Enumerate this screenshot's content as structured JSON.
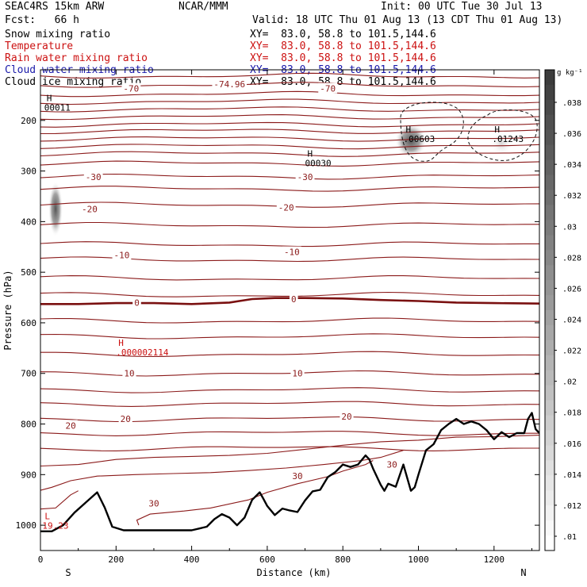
{
  "header": {
    "model": "SEAC4RS 15km ARW",
    "org": "NCAR/MMM",
    "init": "Init: 00 UTC Tue 30 Jul 13",
    "fcst": "Fcst:   66 h",
    "valid": "Valid: 18 UTC Thu 01 Aug 13 (13 CDT Thu 01 Aug 13)"
  },
  "fields": [
    {
      "name": "Snow mixing ratio",
      "xy": "XY=  83.0, 58.8 to 101.5,144.6",
      "color": "#000000"
    },
    {
      "name": "Temperature",
      "xy": "XY=  83.0, 58.8 to 101.5,144.6",
      "color": "#cc1111"
    },
    {
      "name": "Rain water mixing ratio",
      "xy": "XY=  83.0, 58.8 to 101.5,144.6",
      "color": "#cc1111"
    },
    {
      "name": "Cloud water mixing ratio",
      "xy": "XY=  83.0, 58.8 to 101.5,144.6",
      "color": "#1a1aaa"
    },
    {
      "name": "Cloud ice mixing ratio",
      "xy": "XY=  83.0, 58.8 to 101.5,144.6",
      "color": "#000000"
    }
  ],
  "chart_data": {
    "type": "cross-section",
    "xlabel": "Distance (km)",
    "ylabel": "Pressure (hPa)",
    "xlim": [
      0,
      1320
    ],
    "ylim": [
      1050,
      100
    ],
    "x_ticks": [
      "0",
      "200",
      "400",
      "600",
      "800",
      "1000",
      "1200"
    ],
    "y_ticks": [
      "200",
      "300",
      "400",
      "500",
      "600",
      "700",
      "800",
      "900",
      "1000"
    ],
    "end_labels": {
      "left": "S",
      "right": "N"
    },
    "colorbar": {
      "unit": "g kg⁻¹",
      "ticks": [
        ".038",
        ".036",
        ".034",
        ".032",
        ".03",
        ".028",
        ".026",
        ".024",
        ".022",
        ".02",
        ".018",
        ".016",
        ".014",
        ".012",
        ".01"
      ]
    },
    "temperature_labels": [
      {
        "text": "-74.96",
        "x": 500,
        "p": 128
      },
      {
        "text": "-70",
        "x": 240,
        "p": 137
      },
      {
        "text": "-70",
        "x": 760,
        "p": 137
      },
      {
        "text": "-30",
        "x": 140,
        "p": 312
      },
      {
        "text": "-30",
        "x": 700,
        "p": 312
      },
      {
        "text": "-20",
        "x": 130,
        "p": 375
      },
      {
        "text": "-20",
        "x": 650,
        "p": 372
      },
      {
        "text": "-10",
        "x": 215,
        "p": 466
      },
      {
        "text": "-10",
        "x": 665,
        "p": 460
      },
      {
        "text": "0",
        "x": 255,
        "p": 560
      },
      {
        "text": "0",
        "x": 670,
        "p": 553
      },
      {
        "text": "10",
        "x": 235,
        "p": 700
      },
      {
        "text": "10",
        "x": 680,
        "p": 700
      },
      {
        "text": "20",
        "x": 80,
        "p": 803
      },
      {
        "text": "20",
        "x": 225,
        "p": 790
      },
      {
        "text": "20",
        "x": 810,
        "p": 785
      },
      {
        "text": "30",
        "x": 300,
        "p": 957
      },
      {
        "text": "30",
        "x": 680,
        "p": 903
      },
      {
        "text": "30",
        "x": 930,
        "p": 880
      }
    ],
    "extrema": [
      {
        "type": "H",
        "value": "00011",
        "x": 10,
        "p": 176,
        "color": "#000000"
      },
      {
        "type": "H",
        "value": "00030",
        "x": 700,
        "p": 286,
        "color": "#000000"
      },
      {
        "type": "H",
        "value": ".00603",
        "x": 960,
        "p": 238,
        "color": "#000000"
      },
      {
        "type": "H",
        "value": ".01243",
        "x": 1195,
        "p": 238,
        "color": "#000000"
      },
      {
        "type": "H",
        "value": ".000002114",
        "x": 200,
        "p": 660,
        "color": "#cc1111"
      },
      {
        "type": "L",
        "value": "19.23",
        "x": 5,
        "p": 1002,
        "color": "#cc1111"
      }
    ],
    "terrain": {
      "x": [
        0,
        30,
        60,
        90,
        120,
        150,
        170,
        190,
        220,
        260,
        300,
        350,
        400,
        440,
        460,
        480,
        500,
        520,
        540,
        560,
        580,
        590,
        600,
        620,
        640,
        660,
        680,
        700,
        720,
        740,
        760,
        780,
        800,
        820,
        840,
        860,
        870,
        880,
        900,
        910,
        920,
        940,
        960,
        980,
        990,
        1000,
        1020,
        1040,
        1060,
        1080,
        1100,
        1120,
        1140,
        1160,
        1180,
        1200,
        1220,
        1240,
        1260,
        1280,
        1290,
        1300,
        1310,
        1320
      ],
      "p": [
        1012,
        1012,
        1000,
        975,
        955,
        935,
        965,
        1003,
        1010,
        1010,
        1010,
        1010,
        1010,
        1003,
        988,
        978,
        985,
        1000,
        985,
        950,
        935,
        948,
        962,
        980,
        967,
        971,
        974,
        951,
        933,
        930,
        905,
        895,
        880,
        885,
        880,
        862,
        870,
        888,
        920,
        932,
        918,
        924,
        880,
        932,
        925,
        900,
        852,
        840,
        812,
        800,
        790,
        800,
        795,
        800,
        812,
        830,
        816,
        826,
        818,
        818,
        790,
        778,
        810,
        818
      ]
    },
    "zero_isotherm": {
      "x": [
        0,
        100,
        200,
        300,
        400,
        500,
        560,
        620,
        700,
        800,
        900,
        1000,
        1100,
        1200,
        1320
      ],
      "p": [
        563,
        563,
        561,
        561,
        563,
        560,
        553,
        551,
        551,
        552,
        555,
        557,
        560,
        561,
        562
      ]
    },
    "snow_blob": {
      "x": 40,
      "p_top": 330,
      "p_bottom": 420
    },
    "ice_blobs": [
      {
        "x": 980,
        "p": 240
      },
      {
        "x": 1220,
        "p": 245
      }
    ],
    "cloud_water_regions": [
      "dashed region near 1000 km, 140-290 hPa",
      "dashed region near 1230 km, 140-290 hPa"
    ]
  }
}
